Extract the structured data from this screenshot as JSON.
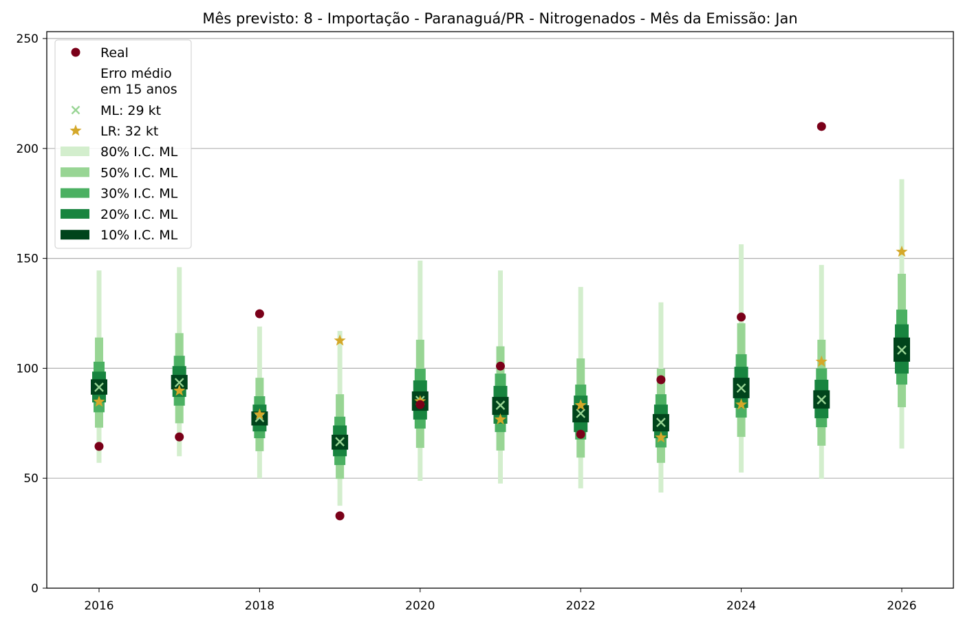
{
  "chart_data": {
    "type": "scatter",
    "title": "Mês previsto: 8 - Importação - Paranaguá/PR - Nitrogenados - Mês da Emissão: Jan",
    "xlabel": "",
    "ylabel": "",
    "xlim": [
      2015.35,
      2026.65
    ],
    "ylim": [
      0,
      252
    ],
    "xticks": [
      2016,
      2018,
      2020,
      2022,
      2024,
      2026
    ],
    "yticks": [
      0,
      50,
      100,
      150,
      200,
      250
    ],
    "grid": "horizontal",
    "legend_placement": "top-left",
    "legend": {
      "real": "Real",
      "note": [
        "Erro médio",
        "em 15 anos"
      ],
      "ml": "ML: 29 kt",
      "lr": "LR: 32 kt",
      "ci80": "80% I.C. ML",
      "ci50": "50% I.C. ML",
      "ci30": "30% I.C. ML",
      "ci20": "20% I.C. ML",
      "ci10": "10% I.C. ML"
    },
    "colors": {
      "real": "#7a0019",
      "ml": "#98d594",
      "lr": "#d4a82a",
      "ci80": "#d3eecd",
      "ci50": "#98d594",
      "ci30": "#4bb062",
      "ci20": "#18843f",
      "ci10": "#00441b"
    },
    "years": [
      2016,
      2017,
      2018,
      2019,
      2020,
      2021,
      2022,
      2023,
      2024,
      2025,
      2026
    ],
    "real": [
      64.5,
      68.8,
      124.8,
      32.9,
      83.5,
      101,
      70,
      94.8,
      123.3,
      210,
      null
    ],
    "ml": [
      91.4,
      93.5,
      77.6,
      66.6,
      85.4,
      83.2,
      79.5,
      75.4,
      91,
      85.7,
      108.3
    ],
    "lr": [
      84.8,
      89.8,
      79,
      112.6,
      85,
      76.7,
      83.2,
      68.5,
      83.5,
      103,
      153
    ],
    "ci80": [
      [
        57,
        144.5
      ],
      [
        60,
        146
      ],
      [
        50,
        119
      ],
      [
        37.5,
        117
      ],
      [
        48.8,
        149
      ],
      [
        47.6,
        144.5
      ],
      [
        45.4,
        137
      ],
      [
        43.5,
        130
      ],
      [
        52.6,
        156.4
      ],
      [
        49.7,
        147
      ],
      [
        63.5,
        186
      ]
    ],
    "ci50": [
      [
        73,
        114
      ],
      [
        75,
        116
      ],
      [
        62.3,
        95.7
      ],
      [
        49.7,
        88.2
      ],
      [
        63.8,
        113
      ],
      [
        62.6,
        110
      ],
      [
        59.4,
        104.5
      ],
      [
        57,
        99.8
      ],
      [
        68.8,
        120.5
      ],
      [
        64.8,
        113
      ],
      [
        82.3,
        143
      ]
    ],
    "ci30": [
      [
        80,
        103
      ],
      [
        83,
        105.7
      ],
      [
        68.2,
        87.3
      ],
      [
        56,
        78
      ],
      [
        72.6,
        99.8
      ],
      [
        71,
        97.6
      ],
      [
        67.6,
        92.6
      ],
      [
        64,
        88.2
      ],
      [
        77.6,
        106.4
      ],
      [
        73.2,
        100
      ],
      [
        92.6,
        126.7
      ]
    ],
    "ci20": [
      [
        84.5,
        98.5
      ],
      [
        87,
        101
      ],
      [
        71.3,
        83.5
      ],
      [
        60,
        74
      ],
      [
        76.7,
        94.5
      ],
      [
        74.8,
        92
      ],
      [
        71,
        87.6
      ],
      [
        68.2,
        83.5
      ],
      [
        82,
        100.7
      ],
      [
        77.3,
        94.8
      ],
      [
        97.6,
        120
      ]
    ],
    "ci10": [
      [
        88,
        95
      ],
      [
        90.4,
        97
      ],
      [
        74,
        80.4
      ],
      [
        63,
        69.8
      ],
      [
        80.7,
        89.5
      ],
      [
        78.8,
        87
      ],
      [
        75.4,
        83.2
      ],
      [
        71.3,
        79.2
      ],
      [
        86.4,
        95.7
      ],
      [
        81.7,
        90
      ],
      [
        103,
        114
      ]
    ]
  }
}
